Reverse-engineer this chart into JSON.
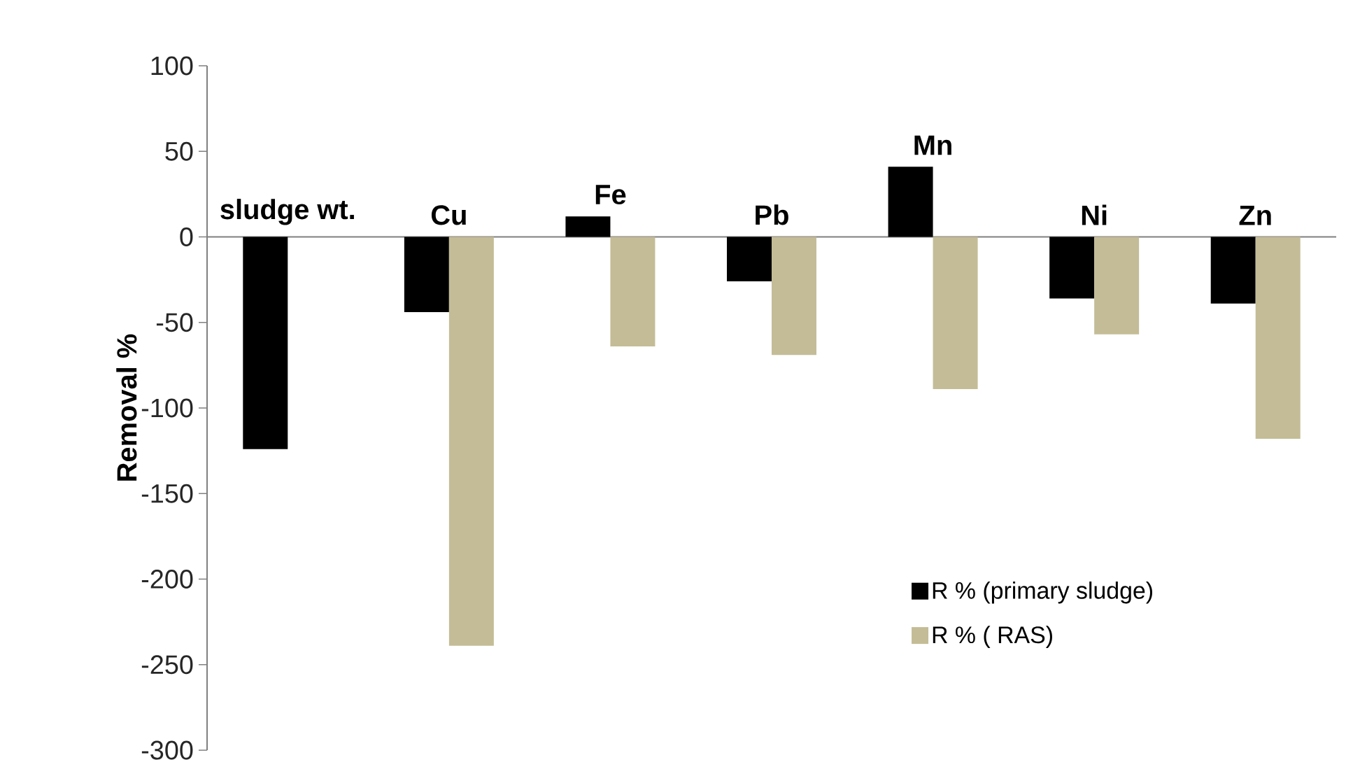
{
  "chart_data": {
    "type": "bar",
    "ylabel": "Removal %",
    "categories": [
      "sludge wt.",
      "Cu",
      "Fe",
      "Pb",
      "Mn",
      "Ni",
      "Zn"
    ],
    "series": [
      {
        "name": "R % (primary sludge)",
        "color": "#000000",
        "values": [
          -124,
          -44,
          12,
          -26,
          41,
          -36,
          -39
        ]
      },
      {
        "name": "R % ( RAS)",
        "color": "#c4bc96",
        "values": [
          null,
          -239,
          -64,
          -69,
          -89,
          -57,
          -118
        ]
      }
    ],
    "ylim": [
      -300,
      100
    ],
    "yticks": [
      -300,
      -250,
      -200,
      -150,
      -100,
      -50,
      0,
      50,
      100
    ],
    "grid": false,
    "legend": "bottom right"
  }
}
